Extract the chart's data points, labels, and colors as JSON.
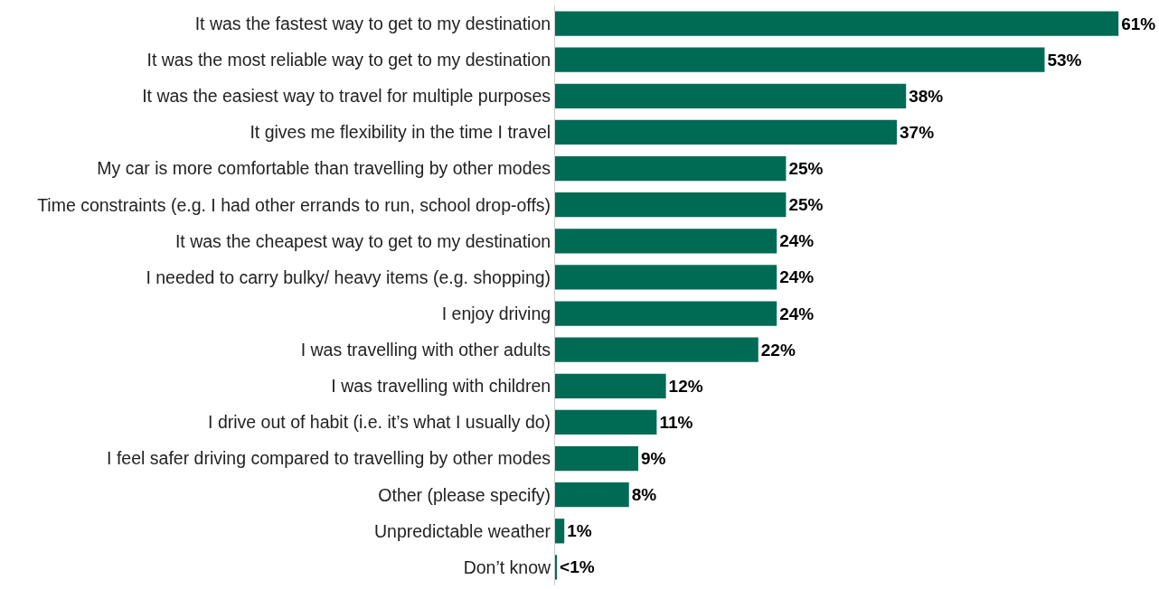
{
  "chart_data": {
    "type": "bar",
    "orientation": "horizontal",
    "categories": [
      "It was the fastest way to get to my destination",
      "It was the most reliable way to get to my destination",
      "It was the easiest way to travel for multiple purposes",
      "It gives me flexibility in the time I travel",
      "My car is more comfortable than travelling by other modes",
      "Time constraints (e.g. I had other errands to run, school drop-offs)",
      "It was the cheapest way to get to my destination",
      "I needed to carry bulky/ heavy items (e.g. shopping)",
      "I enjoy driving",
      "I was travelling with other adults",
      "I was travelling with children",
      "I drive out of habit (i.e. it’s what I usually do)",
      "I feel safer driving compared to travelling by other modes",
      "Other (please specify)",
      "Unpredictable weather",
      "Don’t know"
    ],
    "values": [
      61,
      53,
      38,
      37,
      25,
      25,
      24,
      24,
      24,
      22,
      12,
      11,
      9,
      8,
      1,
      0.2
    ],
    "value_labels": [
      "61%",
      "53%",
      "38%",
      "37%",
      "25%",
      "25%",
      "24%",
      "24%",
      "24%",
      "22%",
      "12%",
      "11%",
      "9%",
      "8%",
      "1%",
      "<1%"
    ],
    "color": "#006b54",
    "tick_labels": "y"
  }
}
